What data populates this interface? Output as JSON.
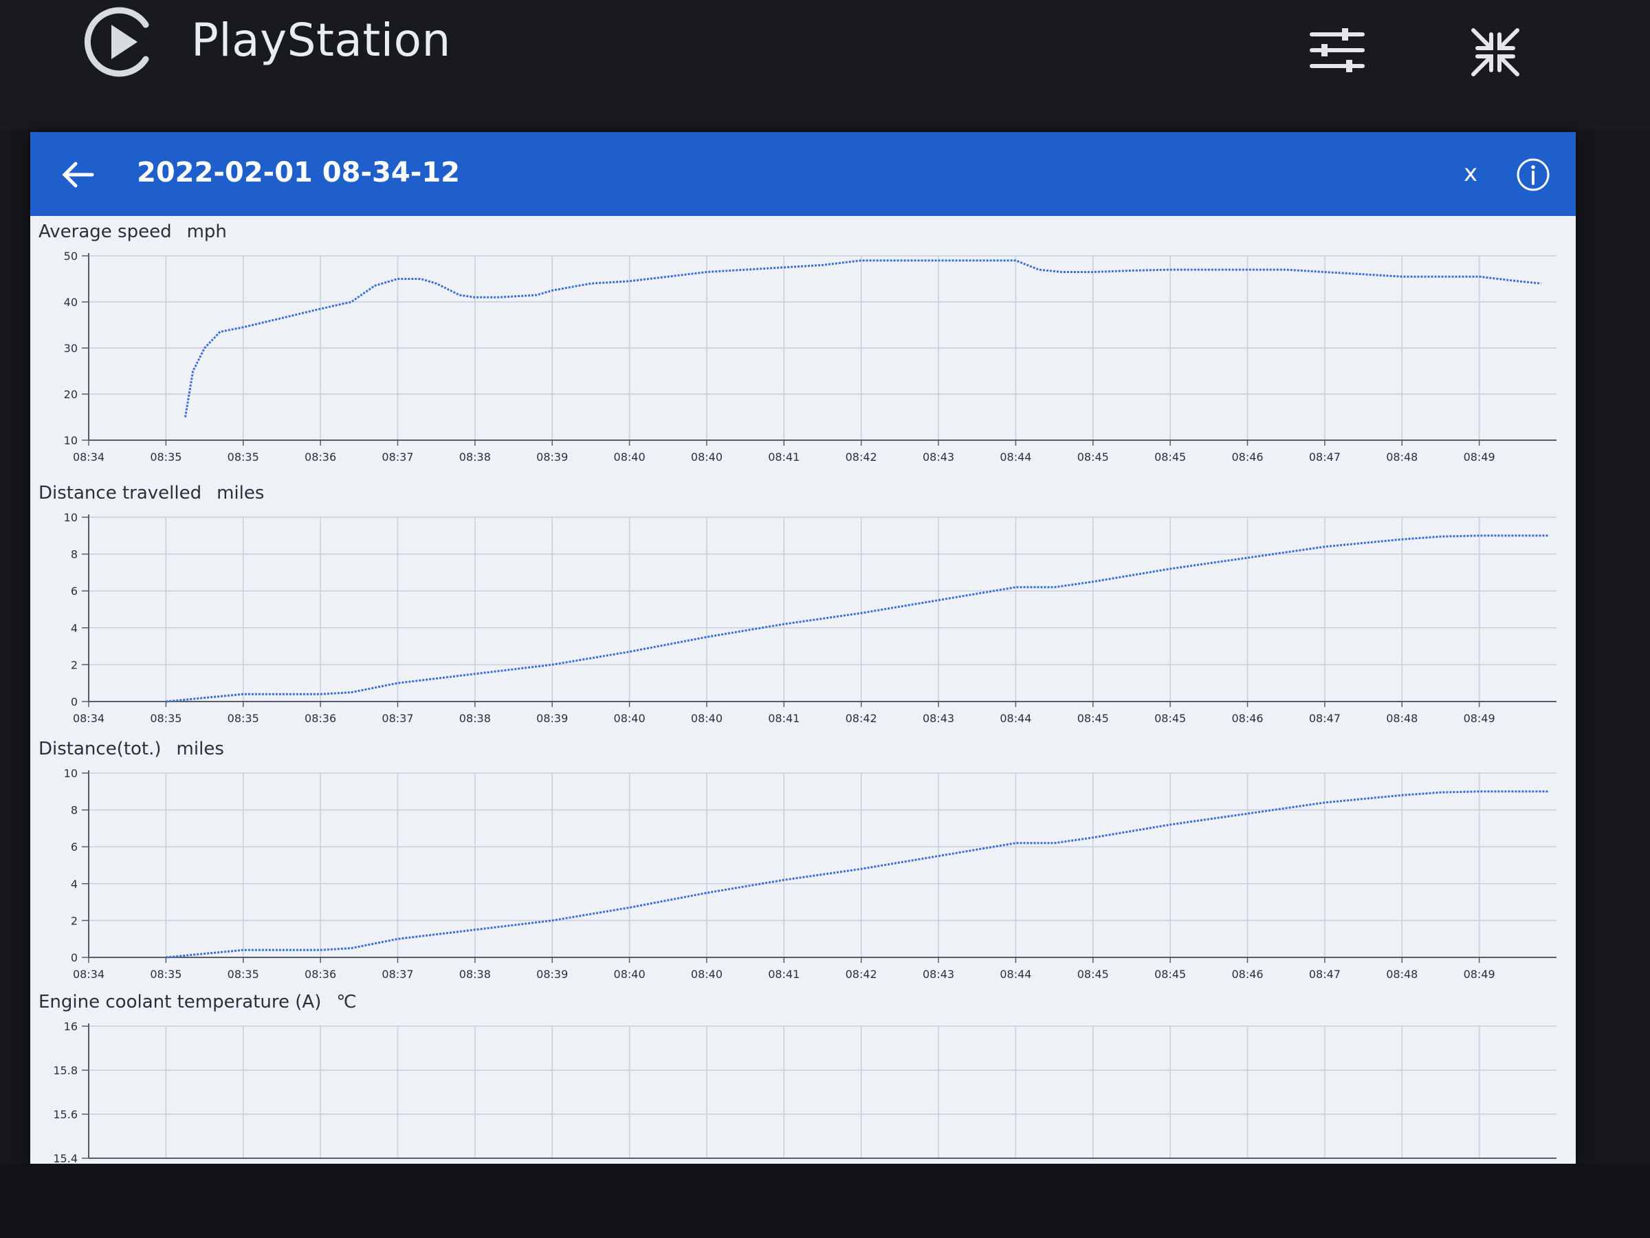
{
  "app": {
    "title": "PlayStation",
    "icons": {
      "logo": "play-circle-icon",
      "settings": "sliders-icon",
      "collapse": "collapse-arrows-icon"
    }
  },
  "header": {
    "title": "2022-02-01 08-34-12",
    "close_label": "x",
    "icons": {
      "back": "arrow-left-icon",
      "info": "info-icon"
    },
    "color": "#1f5fcc"
  },
  "series_color": "#3b6fd8",
  "chart_data": [
    {
      "type": "line",
      "title": "Average speed",
      "unit": "mph",
      "ylim": [
        10,
        50
      ],
      "yticks": [
        10,
        20,
        30,
        40,
        50
      ],
      "xticks": [
        "08:34",
        "08:35",
        "08:35",
        "08:36",
        "08:37",
        "08:38",
        "08:39",
        "08:40",
        "08:40",
        "08:41",
        "08:42",
        "08:43",
        "08:44",
        "08:45",
        "08:45",
        "08:46",
        "08:47",
        "08:48",
        "08:49"
      ],
      "xlim": [
        0,
        19
      ],
      "grid": true,
      "x": [
        1.25,
        1.35,
        1.5,
        1.7,
        2.0,
        2.5,
        3.0,
        3.4,
        3.7,
        4.0,
        4.3,
        4.5,
        4.8,
        5.0,
        5.3,
        5.8,
        6.0,
        6.5,
        7.0,
        7.5,
        8.0,
        8.5,
        9.0,
        9.5,
        10.0,
        10.5,
        11.0,
        11.5,
        12.0,
        12.3,
        12.6,
        13.0,
        13.5,
        14.0,
        14.5,
        15.0,
        15.5,
        16.0,
        16.5,
        17.0,
        17.5,
        18.0,
        18.5,
        18.8
      ],
      "y": [
        15,
        25,
        30,
        33.5,
        34.5,
        36.5,
        38.5,
        40,
        43.5,
        45,
        45,
        44,
        41.5,
        41,
        41,
        41.5,
        42.5,
        44,
        44.5,
        45.5,
        46.5,
        47,
        47.5,
        48,
        49,
        49,
        49,
        49,
        49,
        47,
        46.5,
        46.5,
        46.8,
        47,
        47,
        47,
        47,
        46.5,
        46,
        45.5,
        45.5,
        45.5,
        44.5,
        44
      ]
    },
    {
      "type": "line",
      "title": "Distance travelled",
      "unit": "miles",
      "ylim": [
        0,
        10
      ],
      "yticks": [
        0,
        2,
        4,
        6,
        8,
        10
      ],
      "xticks": [
        "08:34",
        "08:35",
        "08:35",
        "08:36",
        "08:37",
        "08:38",
        "08:39",
        "08:40",
        "08:40",
        "08:41",
        "08:42",
        "08:43",
        "08:44",
        "08:45",
        "08:45",
        "08:46",
        "08:47",
        "08:48",
        "08:49"
      ],
      "xlim": [
        0,
        19
      ],
      "grid": true,
      "x": [
        1.0,
        1.5,
        2.0,
        2.5,
        3.0,
        3.4,
        4.0,
        5.0,
        6.0,
        7.0,
        8.0,
        9.0,
        10.0,
        11.0,
        12.0,
        12.5,
        13.0,
        14.0,
        15.0,
        16.0,
        16.5,
        17.0,
        17.5,
        18.0,
        18.5,
        18.9
      ],
      "y": [
        0,
        0.2,
        0.4,
        0.4,
        0.4,
        0.5,
        1.0,
        1.5,
        2.0,
        2.7,
        3.5,
        4.2,
        4.8,
        5.5,
        6.2,
        6.2,
        6.5,
        7.2,
        7.8,
        8.4,
        8.6,
        8.8,
        8.95,
        9.0,
        9.0,
        9.0
      ]
    },
    {
      "type": "line",
      "title": "Distance(tot.)",
      "unit": "miles",
      "ylim": [
        0,
        10
      ],
      "yticks": [
        0,
        2,
        4,
        6,
        8,
        10
      ],
      "xticks": [
        "08:34",
        "08:35",
        "08:35",
        "08:36",
        "08:37",
        "08:38",
        "08:39",
        "08:40",
        "08:40",
        "08:41",
        "08:42",
        "08:43",
        "08:44",
        "08:45",
        "08:45",
        "08:46",
        "08:47",
        "08:48",
        "08:49"
      ],
      "xlim": [
        0,
        19
      ],
      "grid": true,
      "x": [
        1.0,
        1.5,
        2.0,
        2.5,
        3.0,
        3.4,
        4.0,
        5.0,
        6.0,
        7.0,
        8.0,
        9.0,
        10.0,
        11.0,
        12.0,
        12.5,
        13.0,
        14.0,
        15.0,
        16.0,
        16.5,
        17.0,
        17.5,
        18.0,
        18.5,
        18.9
      ],
      "y": [
        0,
        0.2,
        0.4,
        0.4,
        0.4,
        0.5,
        1.0,
        1.5,
        2.0,
        2.7,
        3.5,
        4.2,
        4.8,
        5.5,
        6.2,
        6.2,
        6.5,
        7.2,
        7.8,
        8.4,
        8.6,
        8.8,
        8.95,
        9.0,
        9.0,
        9.0
      ]
    },
    {
      "type": "line",
      "title": "Engine coolant temperature (A)",
      "unit": "℃",
      "ylim": [
        15.4,
        16
      ],
      "yticks": [
        15.4,
        15.6,
        15.8,
        16
      ],
      "xticks": [],
      "xlim": [
        0,
        19
      ],
      "grid": true,
      "x": [],
      "y": []
    }
  ]
}
